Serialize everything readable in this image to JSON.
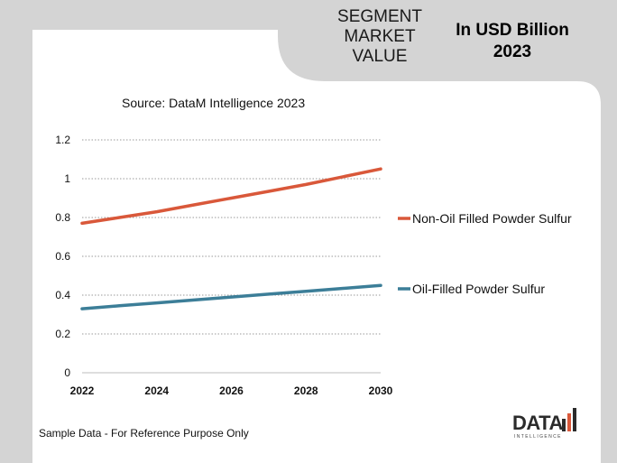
{
  "header": {
    "title_lines": [
      "SEGMENT",
      "MARKET",
      "VALUE"
    ],
    "unit_lines": [
      "In USD Billion",
      "2023"
    ]
  },
  "source_text": "Source: DataM Intelligence  2023",
  "footer_text": "Sample Data - For Reference Purpose Only",
  "logo": {
    "word": "DATA",
    "sub": "INTELLIGENCE"
  },
  "colors": {
    "series_1": "#d9583a",
    "series_2": "#3c7e98",
    "grid": "#9a9a9a"
  },
  "chart_data": {
    "type": "line",
    "title": "",
    "xlabel": "",
    "ylabel": "",
    "x_ticks": [
      "2022",
      "2024",
      "2026",
      "2028",
      "2030"
    ],
    "y_ticks": [
      "0",
      "0.2",
      "0.4",
      "0.6",
      "0.8",
      "1",
      "1.2"
    ],
    "xlim": [
      2022,
      2030
    ],
    "ylim": [
      0,
      1.2
    ],
    "grid": true,
    "legend_position": "right",
    "series": [
      {
        "name": "Non-Oil Filled Powder Sulfur",
        "x": [
          2022,
          2023,
          2024,
          2025,
          2026,
          2027,
          2028,
          2029,
          2030
        ],
        "values": [
          0.77,
          0.8,
          0.83,
          0.865,
          0.9,
          0.935,
          0.97,
          1.01,
          1.05
        ]
      },
      {
        "name": "Oil-Filled Powder Sulfur",
        "x": [
          2022,
          2023,
          2024,
          2025,
          2026,
          2027,
          2028,
          2029,
          2030
        ],
        "values": [
          0.33,
          0.345,
          0.36,
          0.375,
          0.39,
          0.405,
          0.42,
          0.435,
          0.45
        ]
      }
    ]
  }
}
